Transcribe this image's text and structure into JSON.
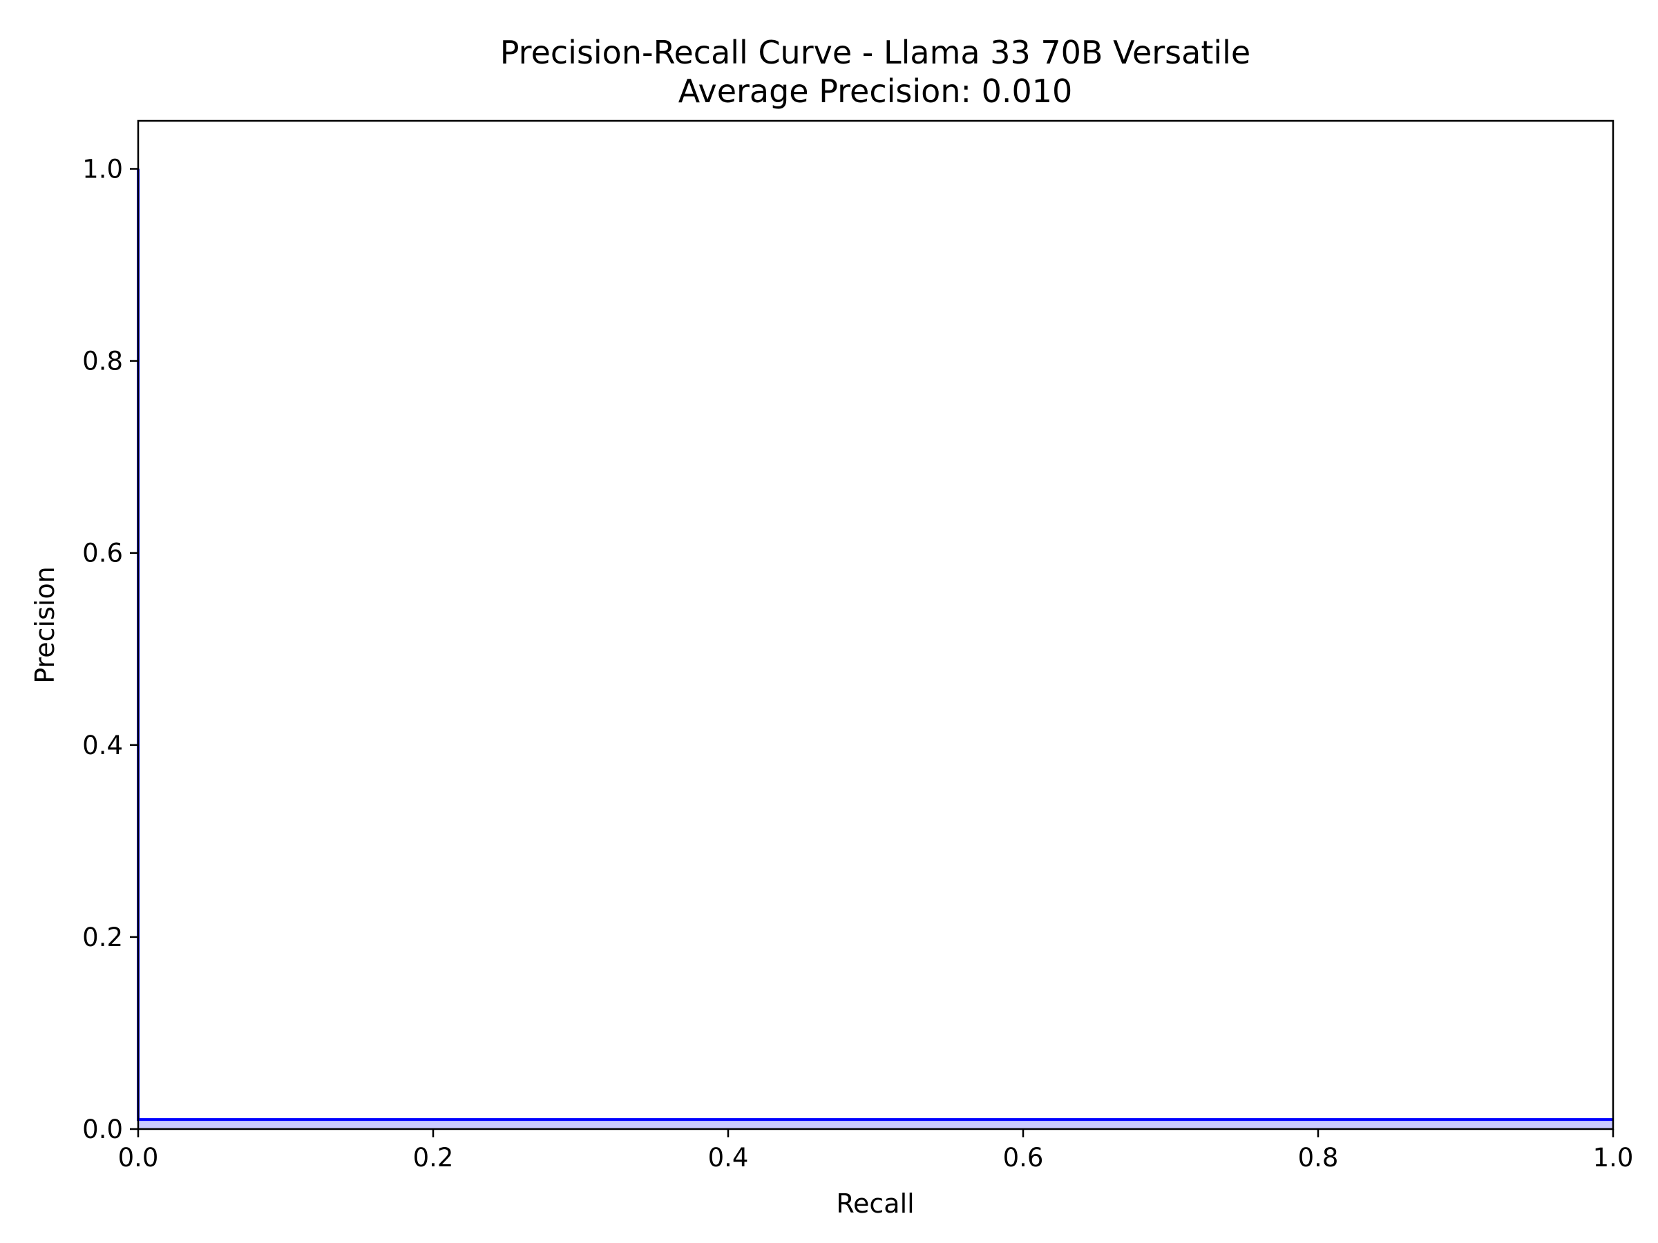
{
  "chart_data": {
    "type": "area",
    "title": "Precision-Recall Curve - Llama 33 70B Versatile",
    "subtitle": "Average Precision: 0.010",
    "xlabel": "Recall",
    "ylabel": "Precision",
    "xlim": [
      0.0,
      1.0
    ],
    "ylim": [
      0.0,
      1.05
    ],
    "xticks": [
      "0.0",
      "0.2",
      "0.4",
      "0.6",
      "0.8",
      "1.0"
    ],
    "yticks": [
      "0.0",
      "0.2",
      "0.4",
      "0.6",
      "0.8",
      "1.0"
    ],
    "grid": false,
    "legend": "none",
    "series": [
      {
        "x": [
          0.0,
          0.0,
          1.0
        ],
        "y": [
          1.0,
          0.01,
          0.01
        ],
        "fill_alpha": 0.2,
        "color": "#0000ff"
      }
    ],
    "colors": {
      "line": "#0000ff",
      "fill": "#0000ff",
      "axes": "#000000",
      "background": "#ffffff"
    }
  }
}
